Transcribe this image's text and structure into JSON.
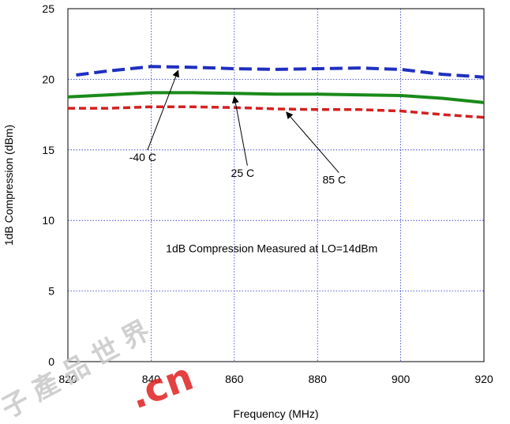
{
  "chart_data": {
    "type": "line",
    "title": "",
    "xlabel": "Frequency (MHz)",
    "ylabel": "1dB Compression (dBm)",
    "xlim": [
      820,
      920
    ],
    "ylim": [
      0,
      25
    ],
    "x_ticks": [
      "820",
      "840",
      "860",
      "880",
      "900",
      "920"
    ],
    "y_ticks": [
      "0",
      "5",
      "10",
      "15",
      "20",
      "25"
    ],
    "grid": true,
    "series": [
      {
        "name": "-40 C",
        "color": "#1f2fc0",
        "style": "dashed",
        "x": [
          822,
          830,
          840,
          850,
          860,
          870,
          880,
          890,
          900,
          910,
          920
        ],
        "y": [
          20.3,
          20.6,
          20.9,
          20.85,
          20.75,
          20.7,
          20.75,
          20.8,
          20.7,
          20.35,
          20.15
        ]
      },
      {
        "name": "25 C",
        "color": "#1a8a1a",
        "style": "solid",
        "x": [
          820,
          830,
          840,
          850,
          860,
          870,
          880,
          890,
          900,
          910,
          920
        ],
        "y": [
          18.75,
          18.9,
          19.05,
          19.05,
          19.0,
          18.95,
          18.95,
          18.9,
          18.85,
          18.65,
          18.35
        ]
      },
      {
        "name": "85 C",
        "color": "#d42020",
        "style": "dashed",
        "x": [
          820,
          830,
          840,
          850,
          860,
          870,
          880,
          890,
          900,
          910,
          920
        ],
        "y": [
          17.95,
          17.95,
          18.05,
          18.05,
          18.0,
          17.9,
          17.85,
          17.85,
          17.75,
          17.5,
          17.3
        ]
      }
    ],
    "annotations": [
      {
        "text": "-40 C",
        "series": "-40 C",
        "target_x": 846.5,
        "target_y": 20.85,
        "label_x": 838,
        "label_y": 14.2
      },
      {
        "text": "25 C",
        "series": "25 C",
        "target_x": 860,
        "target_y": 19.0,
        "label_x": 862,
        "label_y": 13.1
      },
      {
        "text": "85 C",
        "series": "85 C",
        "target_x": 872.5,
        "target_y": 17.9,
        "label_x": 884,
        "label_y": 12.6
      },
      {
        "text": "1dB Compression Measured at LO=14dBm",
        "label_x": 869,
        "label_y": 7.75
      }
    ]
  },
  "watermark": {
    "chars": "子產品世界",
    "latin": ".cn",
    "color_chars": "#c8c8c8",
    "color_latin": "#e02020"
  }
}
